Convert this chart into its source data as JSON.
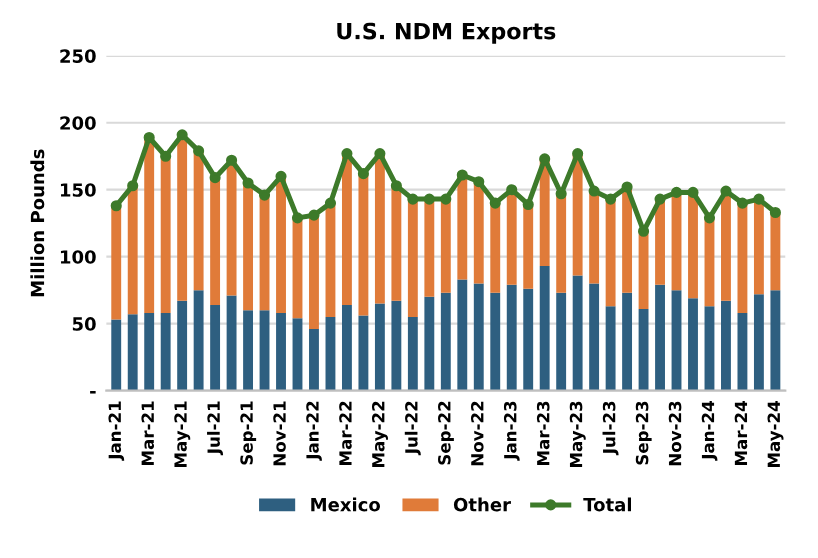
{
  "chart_data": {
    "type": "bar",
    "stacked": true,
    "title": "U.S. NDM Exports",
    "ylabel": "Million Pounds",
    "categories": [
      "Jan-21",
      null,
      "Mar-21",
      null,
      "May-21",
      null,
      "Jul-21",
      null,
      "Sep-21",
      null,
      "Nov-21",
      null,
      "Jan-22",
      null,
      "Mar-22",
      null,
      "May-22",
      null,
      "Jul-22",
      null,
      "Sep-22",
      null,
      "Nov-22",
      null,
      "Jan-23",
      null,
      "Mar-23",
      null,
      "May-23",
      null,
      "Jul-23",
      null,
      "Sep-23",
      null,
      "Nov-23",
      null,
      "Jan-24",
      null,
      "Mar-24",
      null,
      "May-24"
    ],
    "series": [
      {
        "name": "Mexico",
        "color": "#2e5f80",
        "values": [
          53,
          57,
          58,
          58,
          67,
          75,
          64,
          71,
          60,
          60,
          58,
          54,
          46,
          55,
          64,
          56,
          65,
          67,
          55,
          70,
          73,
          83,
          80,
          73,
          79,
          76,
          93,
          73,
          86,
          80,
          63,
          73,
          61,
          79,
          75,
          69,
          63,
          67,
          58,
          72,
          75
        ]
      },
      {
        "name": "Other",
        "color": "#e07b39",
        "values": [
          85,
          96,
          131,
          117,
          124,
          104,
          95,
          101,
          95,
          86,
          102,
          75,
          85,
          85,
          113,
          106,
          112,
          86,
          88,
          73,
          70,
          78,
          76,
          67,
          71,
          63,
          80,
          74,
          91,
          69,
          80,
          79,
          58,
          64,
          73,
          79,
          66,
          82,
          82,
          71,
          58
        ]
      },
      {
        "name": "Total",
        "type": "line",
        "color": "#3d7a2a",
        "marker": "circle",
        "values": [
          138,
          153,
          189,
          175,
          191,
          179,
          159,
          172,
          155,
          146,
          160,
          129,
          131,
          140,
          177,
          162,
          177,
          153,
          143,
          143,
          143,
          161,
          156,
          140,
          150,
          139,
          173,
          147,
          177,
          149,
          143,
          152,
          119,
          143,
          148,
          148,
          129,
          149,
          140,
          143,
          133
        ]
      }
    ],
    "ylim": [
      0,
      250
    ],
    "yticks": [
      {
        "value": 0,
        "label": "-"
      },
      50,
      100,
      150,
      200,
      250
    ],
    "grid": "y",
    "legend": "bottom"
  }
}
